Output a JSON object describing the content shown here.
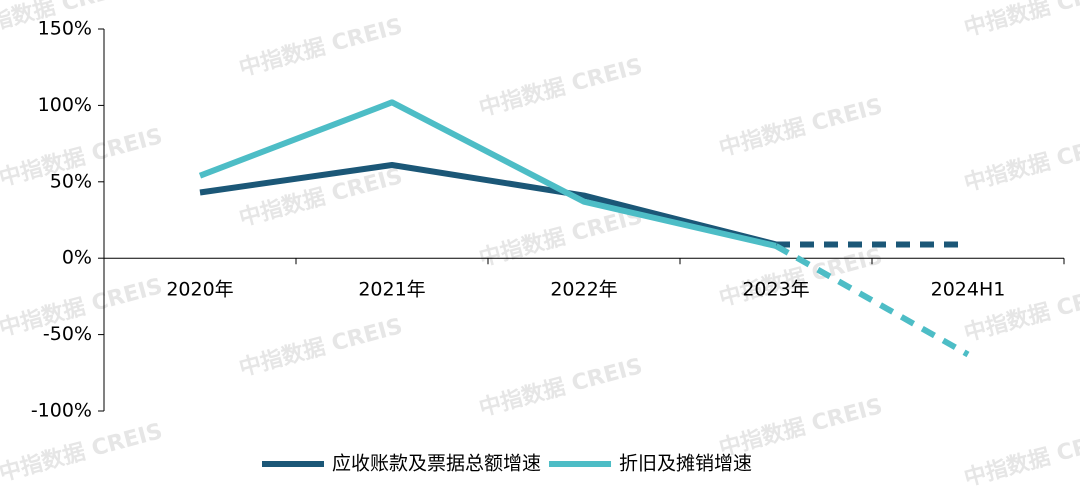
{
  "chart_data": {
    "type": "line",
    "categories": [
      "2020年",
      "2021年",
      "2022年",
      "2023年",
      "2024H1"
    ],
    "series": [
      {
        "name": "应收账款及票据总额增速",
        "color": "#1b5777",
        "values": [
          43,
          61,
          41,
          9,
          9
        ]
      },
      {
        "name": "折旧及摊销增速",
        "color": "#4dbdc6",
        "values": [
          54,
          102,
          37,
          8,
          -63
        ]
      }
    ],
    "dashed_from_index": 3,
    "ylim": [
      -100,
      150
    ],
    "yticks": [
      {
        "value": -100,
        "label": "-100%"
      },
      {
        "value": -50,
        "label": "-50%"
      },
      {
        "value": 0,
        "label": "0%"
      },
      {
        "value": 50,
        "label": "50%"
      },
      {
        "value": 100,
        "label": "100%"
      },
      {
        "value": 150,
        "label": "150%"
      }
    ],
    "legend": "bottom"
  },
  "watermark": "中指数据 CREIS"
}
